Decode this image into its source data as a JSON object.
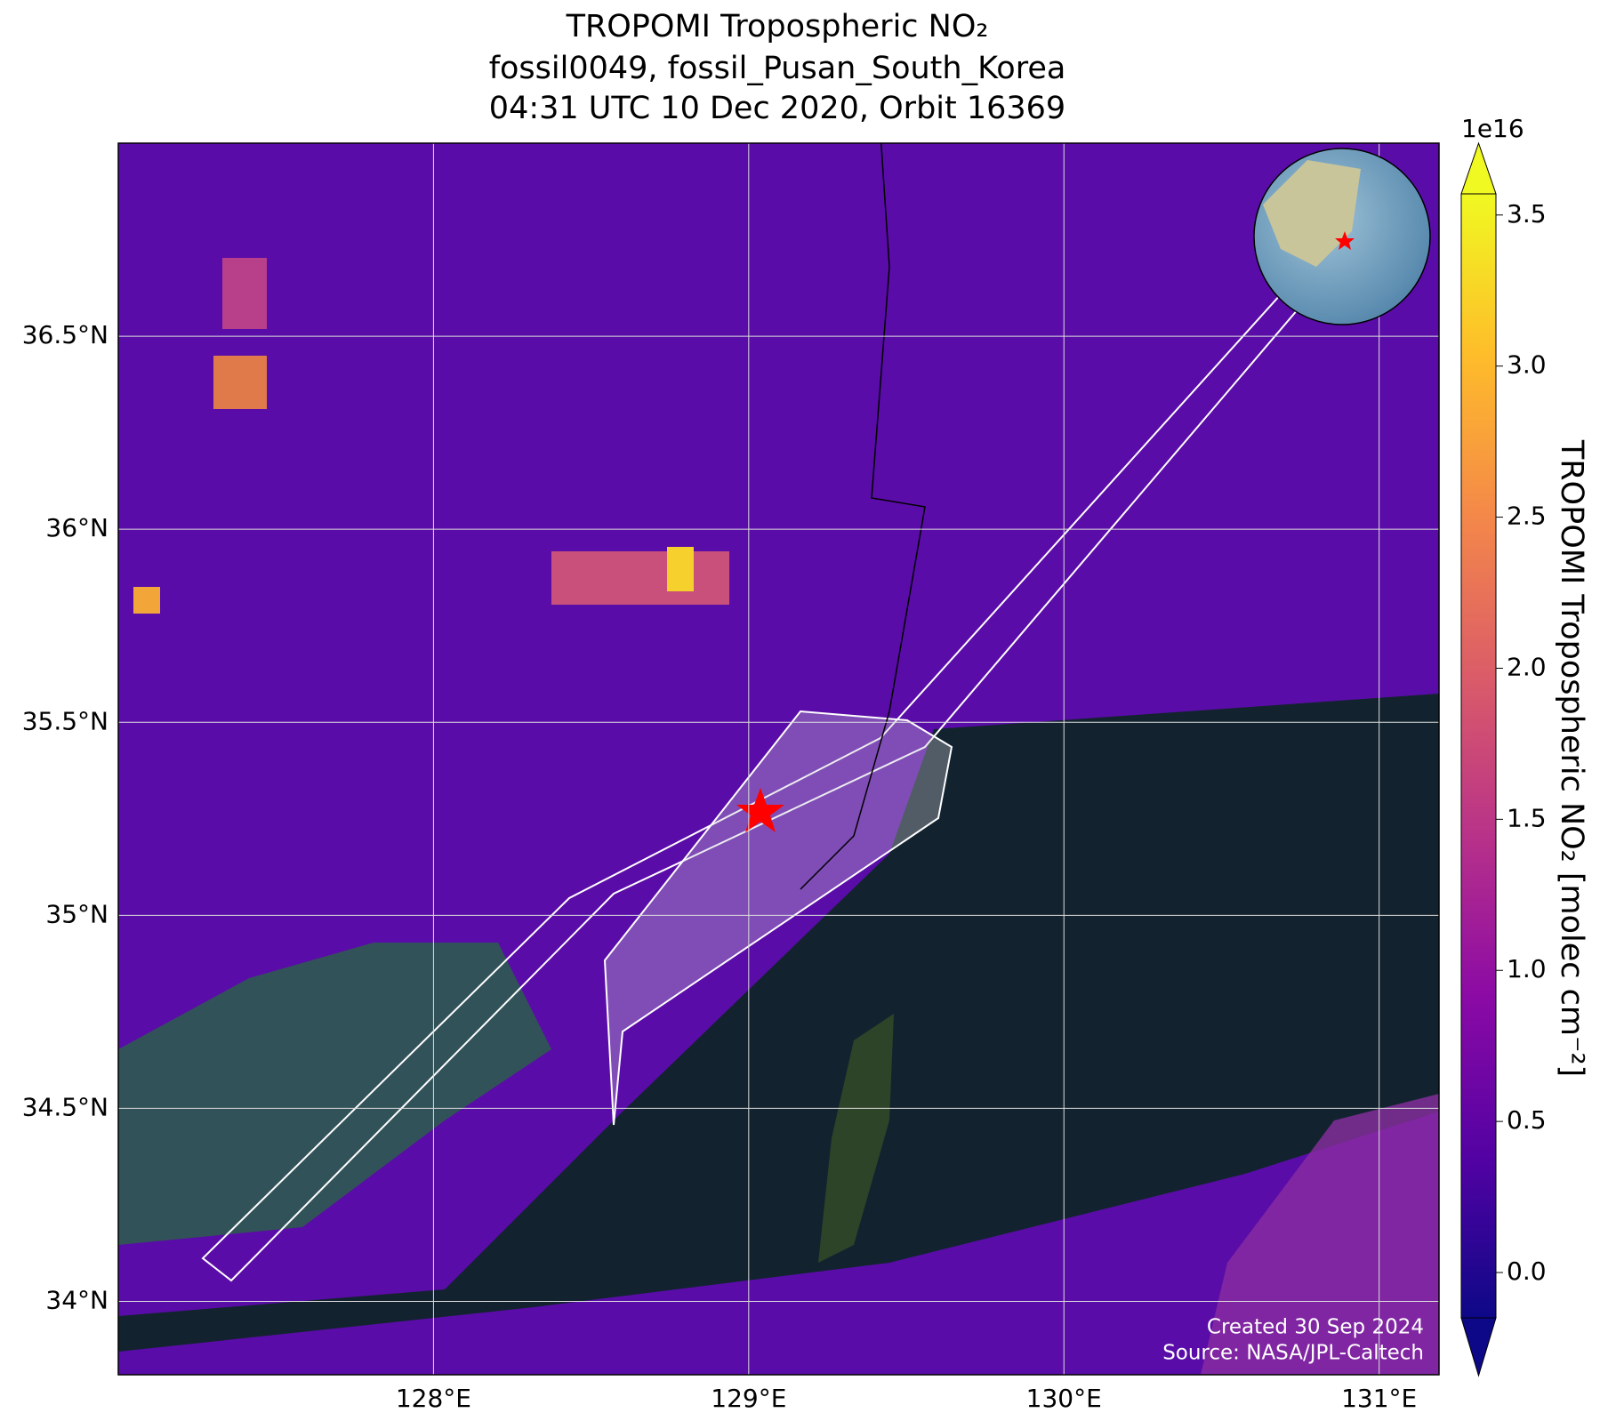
{
  "title": [
    "TROPOMI Tropospheric NO₂",
    "fossil0049, fossil_Pusan_South_Korea",
    "04:31 UTC 10 Dec 2020, Orbit 16369"
  ],
  "map": {
    "lonlim": [
      127.0,
      131.19
    ],
    "latlim": [
      33.81,
      37.0
    ],
    "lonticks": [
      {
        "value": 128,
        "label": "128°E"
      },
      {
        "value": 129,
        "label": "129°E"
      },
      {
        "value": 130,
        "label": "130°E"
      },
      {
        "value": 131,
        "label": "131°E"
      }
    ],
    "latticks": [
      {
        "value": 34,
        "label": "34°N"
      },
      {
        "value": 34.5,
        "label": "34.5°N"
      },
      {
        "value": 35,
        "label": "35°N"
      },
      {
        "value": 35.5,
        "label": "35.5°N"
      },
      {
        "value": 36,
        "label": "36°N"
      },
      {
        "value": 36.5,
        "label": "36.5°N"
      }
    ],
    "grid": true
  },
  "colorbar": {
    "label": "TROPOMI Tropospheric NO₂ [molec cm⁻²]",
    "multiplier": "1e16",
    "clim": [
      -0.15,
      3.57
    ],
    "ticks": [
      {
        "value": 0,
        "label": "0.0"
      },
      0.5,
      {
        "value": 1,
        "label": "1.0"
      },
      1.5,
      {
        "value": 2,
        "label": "2.0"
      },
      2.5,
      {
        "value": 3,
        "label": "3.0"
      },
      3.5
    ],
    "colors": [
      "#0d0887",
      "#5302a3",
      "#8b0aa5",
      "#b83289",
      "#db5c68",
      "#f48849",
      "#febd2a",
      "#f0f921"
    ]
  },
  "annotations": [
    "Created 30 Sep 2024",
    "Source: NASA/JPL-Caltech"
  ]
}
